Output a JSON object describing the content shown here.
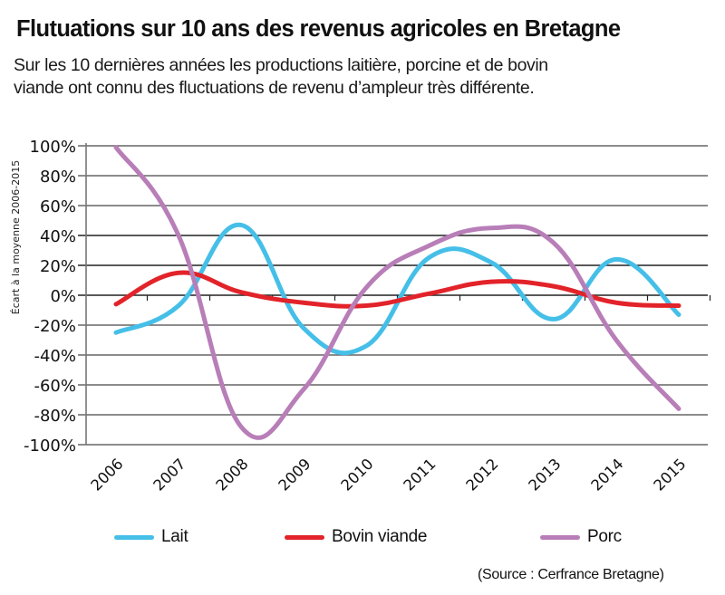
{
  "header": {
    "title": "Flutuations sur 10 ans des revenus agricoles en Bretagne",
    "subtitle_lines": [
      "Sur les 10 dernières années les productions laitière, porcine et de bovin",
      "viande ont connu des fluctuations de revenu d’ampleur très différente."
    ]
  },
  "source": "(Source : Cerfrance Bretagne)",
  "chart_data": {
    "type": "line",
    "title": "Flutuations sur 10 ans des revenus agricoles en Bretagne",
    "xlabel": "",
    "ylabel": "Écart à la moyenne 2006-2015",
    "categories": [
      "2006",
      "2007",
      "2008",
      "2009",
      "2010",
      "2011",
      "2012",
      "2013",
      "2014",
      "2015"
    ],
    "ylim": [
      -100,
      100
    ],
    "yticks": [
      100,
      80,
      60,
      40,
      20,
      0,
      -20,
      -40,
      -60,
      -80,
      -100
    ],
    "ytick_labels": [
      "100%",
      "80%",
      "60%",
      "40%",
      "20%",
      "0%",
      "-20%",
      "-40%",
      "-60%",
      "-80%",
      "-100%"
    ],
    "grid": true,
    "smooth": true,
    "legend_position": "bottom",
    "series": [
      {
        "name": "Lait",
        "color": "#45bfe8",
        "values": [
          -25,
          -7,
          47,
          -22,
          -34,
          25,
          22,
          -16,
          24,
          -13
        ]
      },
      {
        "name": "Bovin viande",
        "color": "#e2232a",
        "values": [
          -6,
          15,
          2,
          -5,
          -7,
          1,
          9,
          6,
          -5,
          -7
        ]
      },
      {
        "name": "Porc",
        "color": "#b87eb8",
        "values": [
          99,
          40,
          -88,
          -63,
          5,
          33,
          45,
          35,
          -30,
          -76
        ]
      }
    ]
  }
}
